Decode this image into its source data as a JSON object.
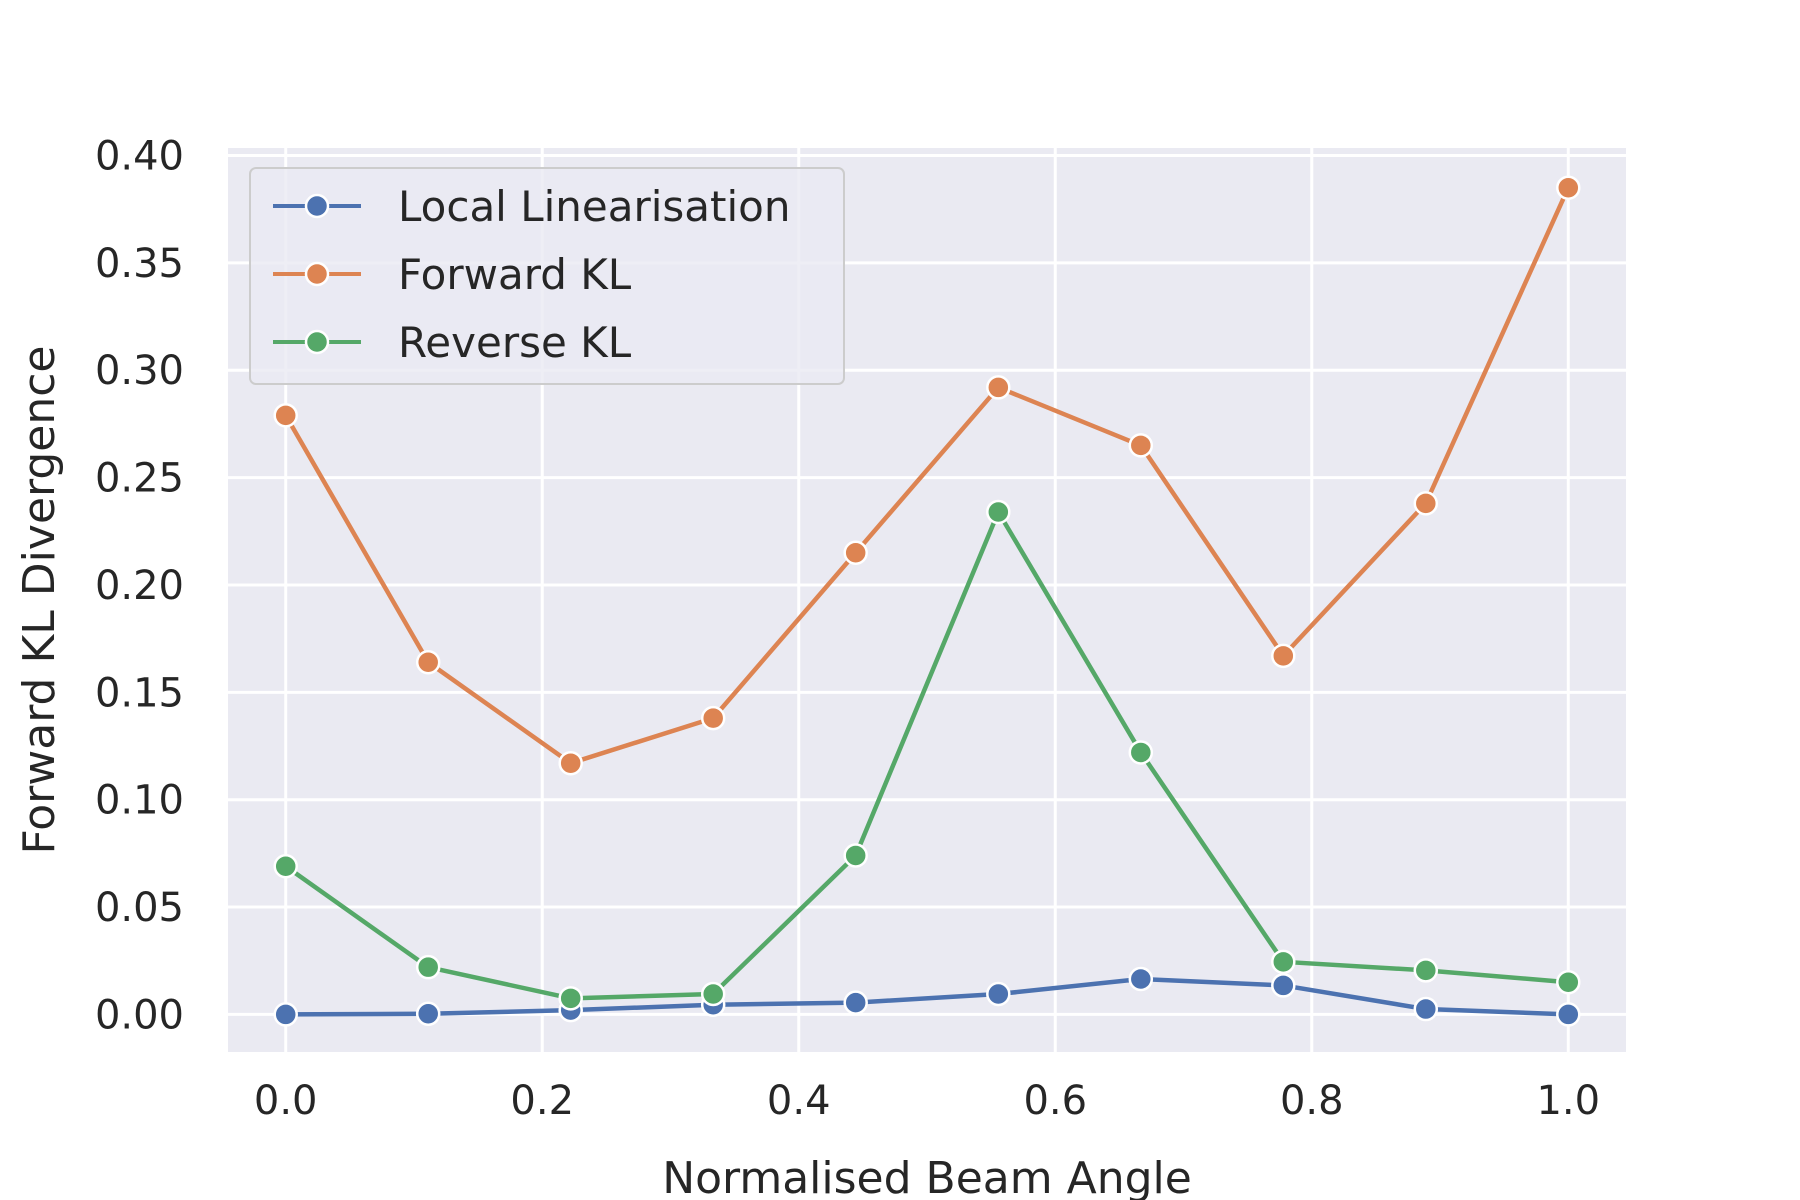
{
  "chart_data": {
    "type": "line",
    "xlabel": "Normalised Beam Angle",
    "ylabel": "Forward KL Divergence",
    "xlim": [
      -0.045,
      1.045
    ],
    "ylim": [
      -0.0175,
      0.4035
    ],
    "xticks": [
      "0.0",
      "0.2",
      "0.4",
      "0.6",
      "0.8",
      "1.0"
    ],
    "yticks": [
      "0.00",
      "0.05",
      "0.10",
      "0.15",
      "0.20",
      "0.25",
      "0.30",
      "0.35",
      "0.40"
    ],
    "grid": true,
    "legend_position": "upper-left",
    "x": [
      0.0,
      0.1111,
      0.2222,
      0.3333,
      0.4444,
      0.5556,
      0.6667,
      0.7778,
      0.8889,
      1.0
    ],
    "series": [
      {
        "name": "Local Linearisation",
        "color": "#4c72b0",
        "values": [
          0.0,
          0.0003,
          0.002,
          0.0045,
          0.0055,
          0.0095,
          0.0165,
          0.0135,
          0.0025,
          0.0
        ]
      },
      {
        "name": "Forward KL",
        "color": "#dd8452",
        "values": [
          0.279,
          0.164,
          0.117,
          0.138,
          0.215,
          0.292,
          0.265,
          0.167,
          0.238,
          0.385
        ]
      },
      {
        "name": "Reverse KL",
        "color": "#55a868",
        "values": [
          0.069,
          0.022,
          0.0075,
          0.0095,
          0.074,
          0.234,
          0.122,
          0.0245,
          0.0205,
          0.015
        ]
      }
    ],
    "colors": {
      "plot_background": "#eaeaf2",
      "grid": "#ffffff",
      "text": "#262626"
    }
  }
}
